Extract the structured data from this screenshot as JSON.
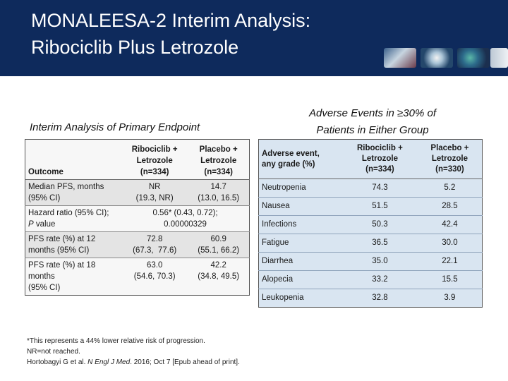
{
  "slide": {
    "title_line1": "MONALEESA-2 Interim Analysis:",
    "title_line2": "Ribociclib Plus Letrozole"
  },
  "left_section": {
    "title": "Interim Analysis of Primary Endpoint",
    "headers": {
      "outcome": "Outcome",
      "col1_line1": "Ribociclib +",
      "col1_line2": "Letrozole",
      "col1_line3": "(n=334)",
      "col2_line1": "Placebo +",
      "col2_line2": "Letrozole",
      "col2_line3": "(n=334)"
    },
    "rows": [
      {
        "label_line1": "Median PFS, months",
        "label_line2": "(95% CI)",
        "v1_line1": "NR",
        "v1_line2": "(19.3, NR)",
        "v2_line1": "14.7",
        "v2_line2": "(13.0, 16.5)"
      },
      {
        "label_line1": "Hazard ratio (95% CI);",
        "label_line2_italic": "P",
        "label_line2_rest": " value",
        "span_line1": "0.56* (0.43, 0.72);",
        "span_line2": "0.00000329"
      },
      {
        "label_line1": "PFS rate (%) at 12",
        "label_line2": "months (95% CI)",
        "v1_line1": "72.8",
        "v1_line2": "(67.3,  77.6)",
        "v2_line1": "60.9",
        "v2_line2": "(55.1, 66.2)"
      },
      {
        "label_line1": "PFS rate (%) at 18",
        "label_line2": "months",
        "label_line3": "(95% CI)",
        "v1_line1": "63.0",
        "v1_line2": "(54.6, 70.3)",
        "v2_line1": "42.2",
        "v2_line2": "(34.8, 49.5)"
      }
    ]
  },
  "right_section": {
    "title_line1": "Adverse Events in ≥30% of",
    "title_line2": "Patients in Either Group",
    "headers": {
      "event_line1": "Adverse event,",
      "event_line2": "any grade (%)",
      "col1_line1": "Ribociclib +",
      "col1_line2": "Letrozole",
      "col1_line3": "(n=334)",
      "col2_line1": "Placebo +",
      "col2_line2": "Letrozole",
      "col2_line3": "(n=330)"
    },
    "rows": [
      {
        "event": "Neutropenia",
        "v1": "74.3",
        "v2": "5.2"
      },
      {
        "event": "Nausea",
        "v1": "51.5",
        "v2": "28.5"
      },
      {
        "event": "Infections",
        "v1": "50.3",
        "v2": "42.4"
      },
      {
        "event": "Fatigue",
        "v1": "36.5",
        "v2": "30.0"
      },
      {
        "event": "Diarrhea",
        "v1": "35.0",
        "v2": "22.1"
      },
      {
        "event": "Alopecia",
        "v1": "33.2",
        "v2": "15.5"
      },
      {
        "event": "Leukopenia",
        "v1": "32.8",
        "v2": "3.9"
      }
    ]
  },
  "footnotes": {
    "line1": "*This represents a 44% lower relative risk of progression.",
    "line2": "NR=not reached.",
    "line3_a": "Hortobagyi G et al. ",
    "line3_italic": "N Engl J Med",
    "line3_b": ". 2016; Oct 7 [Epub ahead of print]."
  },
  "colors": {
    "header_bg": "#0e2a5c",
    "right_table_bg": "#d9e5f1",
    "left_table_shade": "#e4e4e4"
  }
}
